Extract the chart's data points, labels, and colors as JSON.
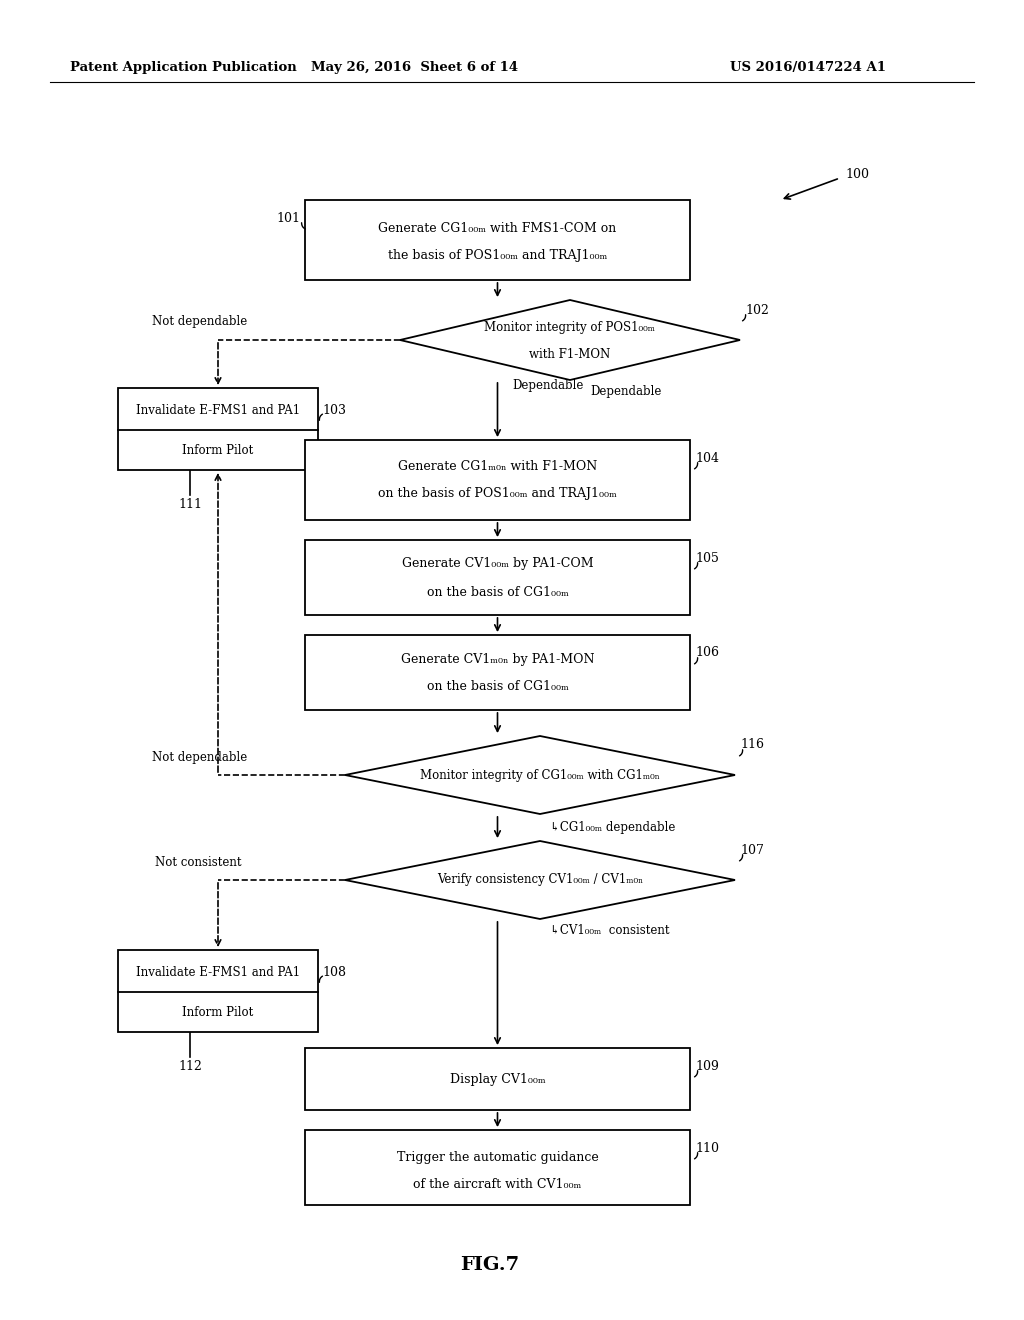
{
  "bg_color": "#ffffff",
  "header_left": "Patent Application Publication",
  "header_mid": "May 26, 2016  Sheet 6 of 14",
  "header_right": "US 2016/0147224 A1",
  "fig_label": "FIG.7"
}
